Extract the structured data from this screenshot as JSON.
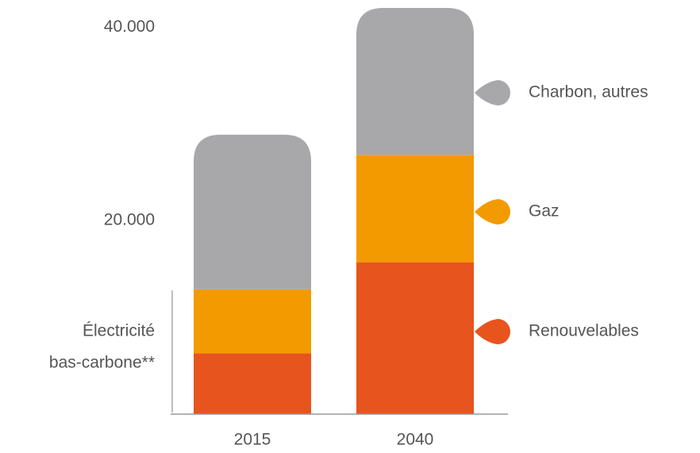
{
  "chart_data": {
    "type": "bar",
    "stacked": true,
    "categories": [
      "2015",
      "2040"
    ],
    "series": [
      {
        "name": "Renouvelables",
        "color": "#e8541e",
        "values": [
          6300,
          15700
        ]
      },
      {
        "name": "Gaz",
        "color": "#f39a00",
        "values": [
          6600,
          11100
        ]
      },
      {
        "name": "Charbon, autres",
        "color": "#a8a8aa",
        "values": [
          16000,
          15200
        ]
      }
    ],
    "ylim": [
      0,
      42000
    ],
    "yticks": [
      {
        "value": 20000,
        "label": "20.000"
      },
      {
        "value": 40000,
        "label": "40.000"
      }
    ],
    "annotation": [
      "Électricité",
      "bas-carbone**"
    ]
  }
}
